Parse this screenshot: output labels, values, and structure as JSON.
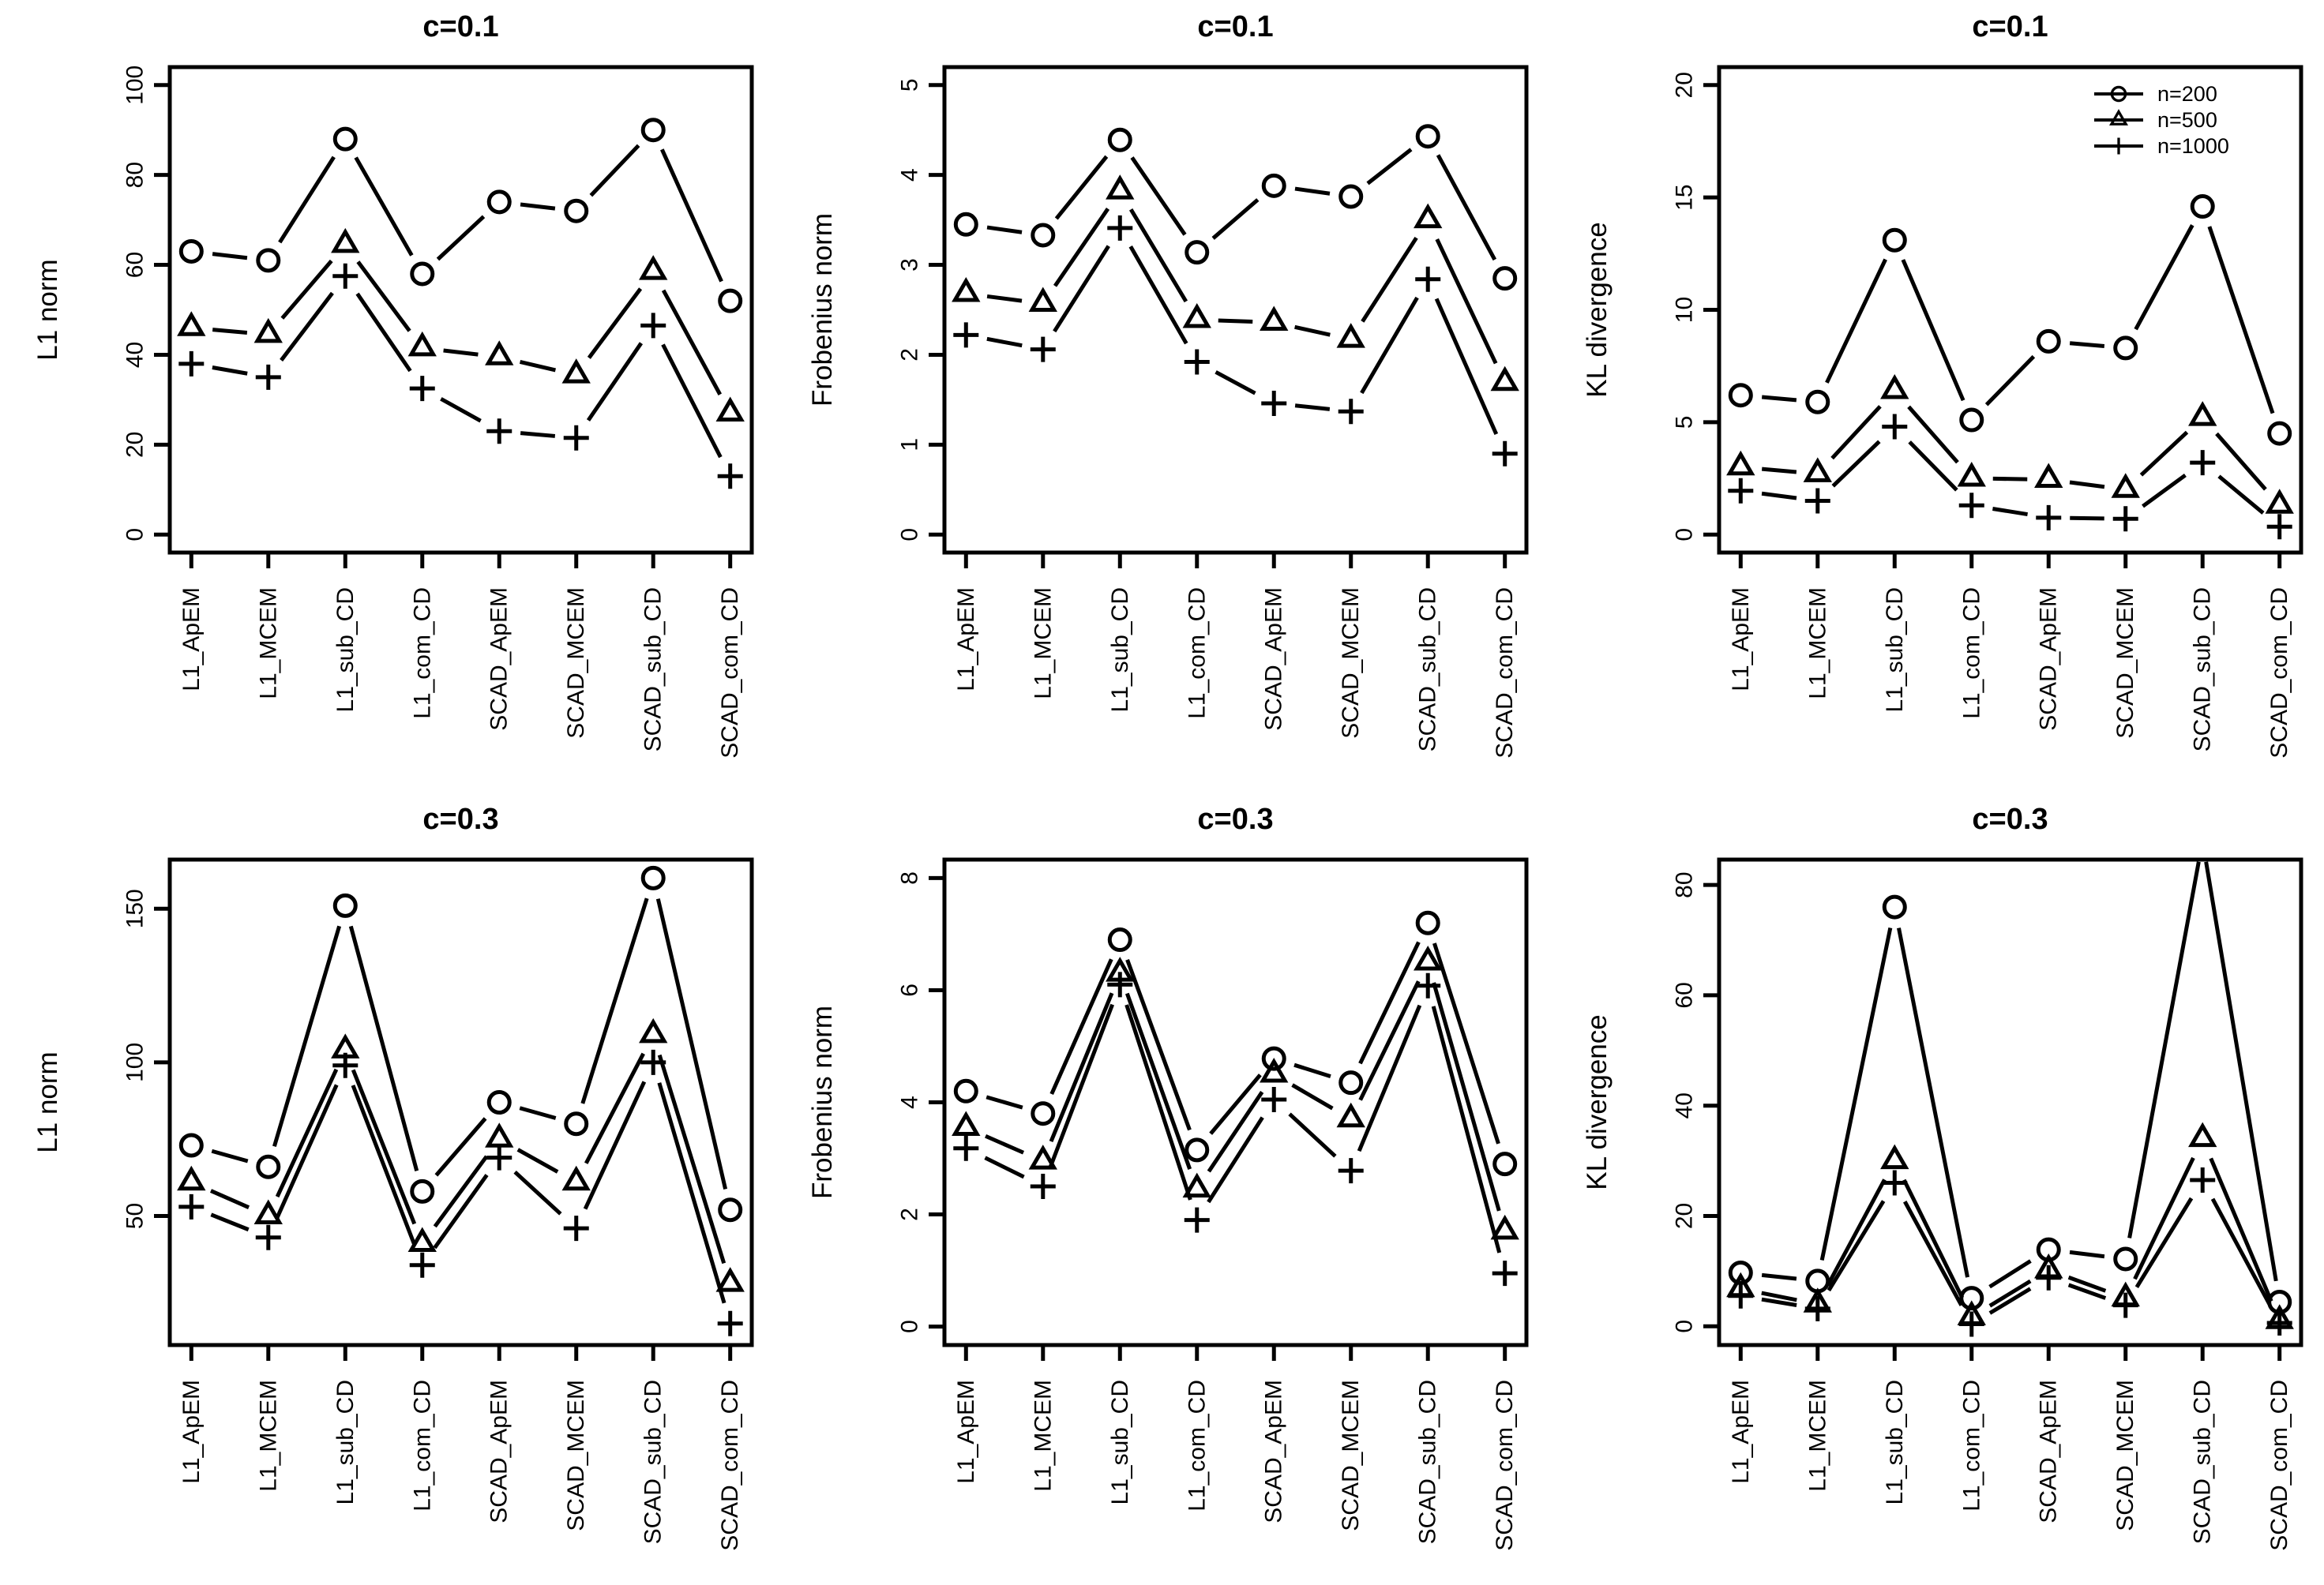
{
  "figure": {
    "background": "#ffffff",
    "ink": "#000000",
    "rows": 2,
    "cols": 3,
    "description": "Six line panels comparing estimation methods"
  },
  "categories": [
    "L1_ApEM",
    "L1_MCEM",
    "L1_sub_CD",
    "L1_com_CD",
    "SCAD_ApEM",
    "SCAD_MCEM",
    "SCAD_sub_CD",
    "SCAD_com_CD"
  ],
  "legend": {
    "position": "top-right inside third panel of first row",
    "border": "none",
    "items": [
      {
        "label": "n=200",
        "marker": "circle"
      },
      {
        "label": "n=500",
        "marker": "triangle"
      },
      {
        "label": "n=1000",
        "marker": "plus"
      }
    ]
  },
  "chart_data": [
    {
      "type": "line",
      "title": "c=0.1",
      "ylabel": "L1 norm",
      "xlabel": "",
      "grid": false,
      "yticks": [
        0,
        20,
        40,
        60,
        80,
        100
      ],
      "ylim": [
        -4,
        104
      ],
      "show_legend": false,
      "series": [
        {
          "name": "n=200",
          "marker": "circle",
          "values": [
            63,
            61,
            88,
            58,
            74,
            72,
            90,
            52
          ]
        },
        {
          "name": "n=500",
          "marker": "triangle",
          "values": [
            46,
            44.5,
            64.5,
            41.5,
            39.5,
            35.5,
            58.5,
            27
          ]
        },
        {
          "name": "n=1000",
          "marker": "plus",
          "values": [
            38,
            35,
            57.5,
            32.5,
            23,
            21.5,
            46.5,
            13
          ]
        }
      ]
    },
    {
      "type": "line",
      "title": "c=0.1",
      "ylabel": "Frobenius norm",
      "xlabel": "",
      "grid": false,
      "yticks": [
        0,
        1,
        2,
        3,
        4,
        5
      ],
      "ylim": [
        -0.2,
        5.2
      ],
      "show_legend": false,
      "series": [
        {
          "name": "n=200",
          "marker": "circle",
          "values": [
            3.45,
            3.33,
            4.39,
            3.14,
            3.88,
            3.76,
            4.43,
            2.85
          ]
        },
        {
          "name": "n=500",
          "marker": "triangle",
          "values": [
            2.68,
            2.57,
            3.82,
            2.39,
            2.36,
            2.17,
            3.5,
            1.69
          ]
        },
        {
          "name": "n=1000",
          "marker": "plus",
          "values": [
            2.22,
            2.06,
            3.41,
            1.92,
            1.46,
            1.37,
            2.84,
            0.9
          ]
        }
      ]
    },
    {
      "type": "line",
      "title": "c=0.1",
      "ylabel": "KL divergence",
      "xlabel": "",
      "grid": false,
      "yticks": [
        0,
        5,
        10,
        15,
        20
      ],
      "ylim": [
        -0.8,
        20.8
      ],
      "show_legend": true,
      "series": [
        {
          "name": "n=200",
          "marker": "circle",
          "values": [
            6.2,
            5.9,
            13.1,
            5.1,
            8.6,
            8.3,
            14.6,
            4.5
          ]
        },
        {
          "name": "n=500",
          "marker": "triangle",
          "values": [
            3.0,
            2.7,
            6.4,
            2.5,
            2.45,
            2.0,
            5.2,
            1.3
          ]
        },
        {
          "name": "n=1000",
          "marker": "plus",
          "values": [
            1.95,
            1.5,
            4.8,
            1.3,
            0.75,
            0.7,
            3.2,
            0.35
          ]
        }
      ]
    },
    {
      "type": "line",
      "title": "c=0.3",
      "ylabel": "L1 norm",
      "xlabel": "",
      "grid": false,
      "yticks": [
        50,
        100,
        150
      ],
      "ylim": [
        8,
        166
      ],
      "show_legend": false,
      "series": [
        {
          "name": "n=200",
          "marker": "circle",
          "values": [
            73,
            66,
            151,
            58,
            87,
            80,
            160,
            52
          ]
        },
        {
          "name": "n=500",
          "marker": "triangle",
          "values": [
            61,
            50,
            104,
            41,
            75,
            61,
            109,
            28
          ]
        },
        {
          "name": "n=1000",
          "marker": "plus",
          "values": [
            53,
            43,
            99,
            34,
            69,
            46,
            100,
            15
          ]
        }
      ]
    },
    {
      "type": "line",
      "title": "c=0.3",
      "ylabel": "Frobenius norm",
      "xlabel": "",
      "grid": false,
      "yticks": [
        0,
        2,
        4,
        6,
        8
      ],
      "ylim": [
        -0.33,
        8.33
      ],
      "show_legend": false,
      "series": [
        {
          "name": "n=200",
          "marker": "circle",
          "values": [
            4.2,
            3.8,
            6.9,
            3.15,
            4.78,
            4.35,
            7.2,
            2.9
          ]
        },
        {
          "name": "n=500",
          "marker": "triangle",
          "values": [
            3.55,
            2.95,
            6.3,
            2.45,
            4.5,
            3.7,
            6.5,
            1.7
          ]
        },
        {
          "name": "n=1000",
          "marker": "plus",
          "values": [
            3.18,
            2.5,
            6.1,
            1.9,
            4.05,
            2.78,
            6.08,
            0.95
          ]
        }
      ]
    },
    {
      "type": "line",
      "title": "c=0.3",
      "ylabel": "KL divergence",
      "xlabel": "",
      "grid": false,
      "yticks": [
        0,
        20,
        40,
        60,
        80
      ],
      "ylim": [
        -3.4,
        84.6
      ],
      "show_legend": false,
      "note": "n=200 value at SCAD_sub_CD exceeds the axis maximum; the line is clipped at the top plot border",
      "series": [
        {
          "name": "n=200",
          "marker": "circle",
          "values": [
            9.7,
            8.2,
            76,
            5.1,
            13.9,
            12.2,
            88,
            4.4
          ]
        },
        {
          "name": "n=500",
          "marker": "triangle",
          "values": [
            6.8,
            4.0,
            30,
            1.7,
            10.2,
            5.1,
            34,
            1.0
          ]
        },
        {
          "name": "n=1000",
          "marker": "plus",
          "values": [
            5.5,
            3.2,
            26,
            0.4,
            8.8,
            3.8,
            26.5,
            0.6
          ]
        }
      ]
    }
  ]
}
